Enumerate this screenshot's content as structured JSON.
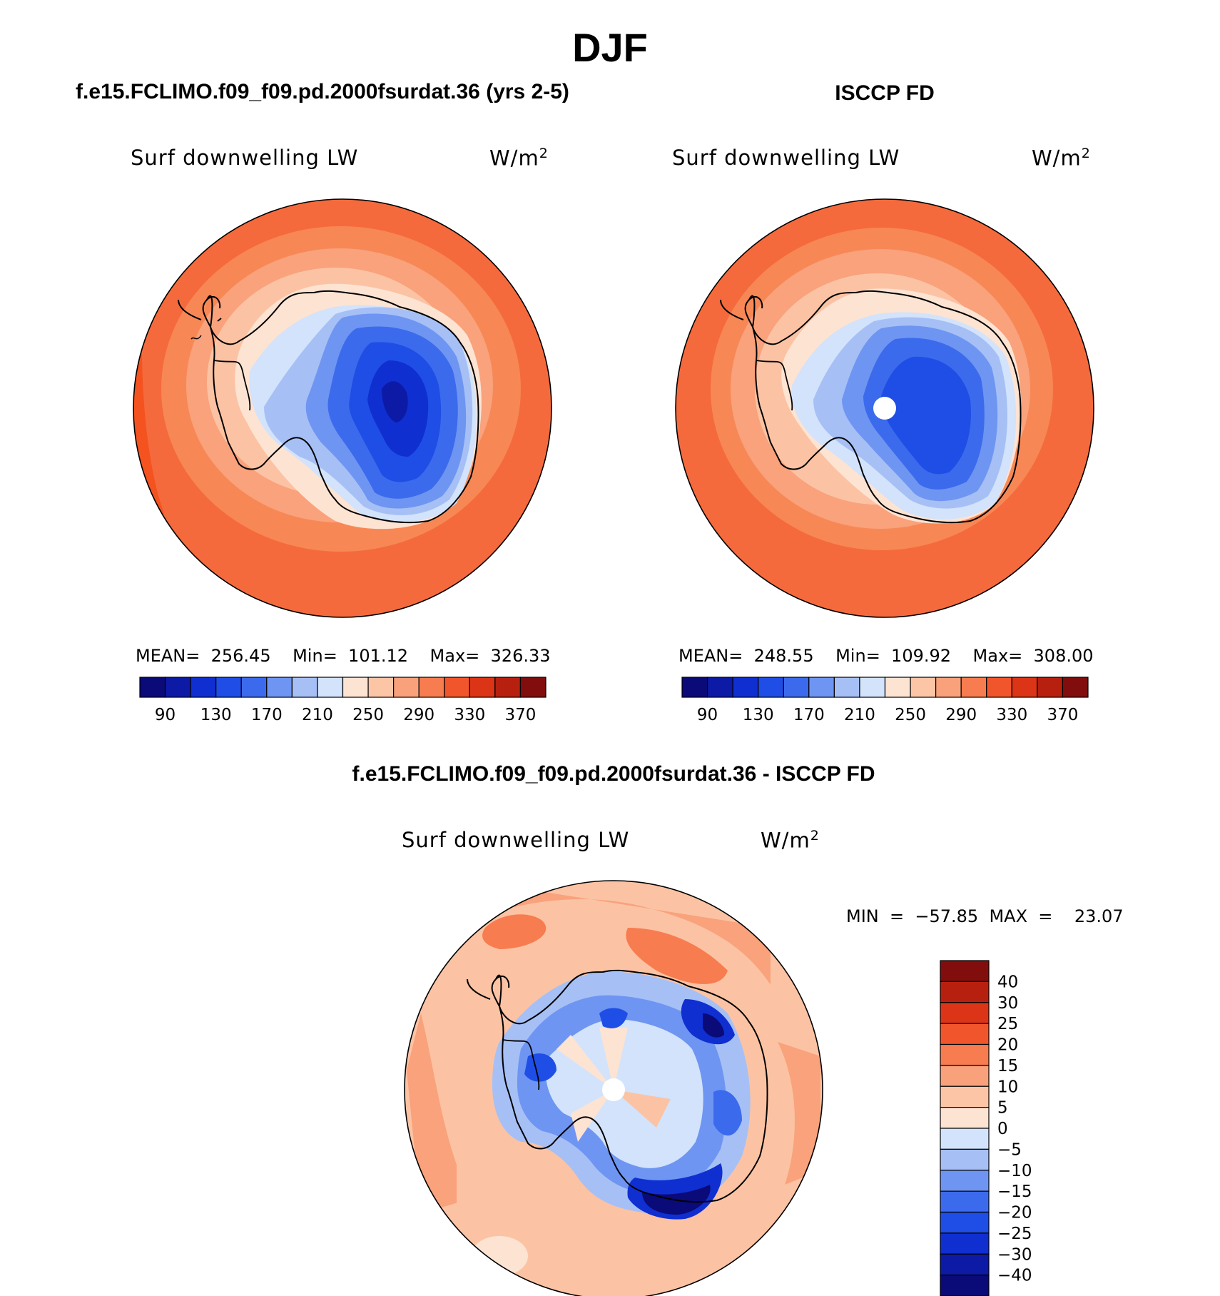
{
  "figure": {
    "main_title": "DJF",
    "panel_left_title": "f.e15.FCLIMO.f09_f09.pd.2000fsurdat.36 (yrs 2-5)",
    "panel_right_title": "ISCCP FD",
    "panel_diff_title": "f.e15.FCLIMO.f09_f09.pd.2000fsurdat.36 - ISCCP FD"
  },
  "chart_data": [
    {
      "type": "heatmap",
      "projection": "south polar stereographic",
      "title": "f.e15.FCLIMO.f09_f09.pd.2000fsurdat.36 (yrs 2-5)",
      "variable": "Surf downwelling LW",
      "units_base": "W/m",
      "units_exp": "2",
      "stats_text": "MEAN=  256.45    Min=  101.12    Max=  326.33",
      "stats": {
        "mean": 256.45,
        "min": 101.12,
        "max": 326.33
      },
      "colorbar": {
        "orientation": "horizontal",
        "levels": [
          90,
          110,
          130,
          150,
          170,
          190,
          210,
          230,
          250,
          270,
          290,
          310,
          330,
          350,
          370
        ],
        "tick_labels": [
          "90",
          "130",
          "170",
          "210",
          "250",
          "290",
          "330",
          "370"
        ],
        "colors": [
          "#0a0a78",
          "#0c1aa6",
          "#0f2fd0",
          "#1f4ee6",
          "#3b6bec",
          "#6f95f2",
          "#a6c0f6",
          "#d2e3fb",
          "#fde3d2",
          "#fbc5a6",
          "#f9a17b",
          "#f77c4f",
          "#f1552b",
          "#db3416",
          "#b7200f",
          "#820d0d"
        ]
      }
    },
    {
      "type": "heatmap",
      "projection": "south polar stereographic",
      "title": "ISCCP FD",
      "variable": "Surf downwelling LW",
      "units_base": "W/m",
      "units_exp": "2",
      "stats_text": "MEAN=  248.55    Min=  109.92    Max=  308.00",
      "stats": {
        "mean": 248.55,
        "min": 109.92,
        "max": 308.0
      },
      "colorbar": {
        "orientation": "horizontal",
        "levels": [
          90,
          110,
          130,
          150,
          170,
          190,
          210,
          230,
          250,
          270,
          290,
          310,
          330,
          350,
          370
        ],
        "tick_labels": [
          "90",
          "130",
          "170",
          "210",
          "250",
          "290",
          "330",
          "370"
        ],
        "colors": [
          "#0a0a78",
          "#0c1aa6",
          "#0f2fd0",
          "#1f4ee6",
          "#3b6bec",
          "#6f95f2",
          "#a6c0f6",
          "#d2e3fb",
          "#fde3d2",
          "#fbc5a6",
          "#f9a17b",
          "#f77c4f",
          "#f1552b",
          "#db3416",
          "#b7200f",
          "#820d0d"
        ]
      }
    },
    {
      "type": "heatmap",
      "projection": "south polar stereographic",
      "title": "f.e15.FCLIMO.f09_f09.pd.2000fsurdat.36 - ISCCP FD",
      "variable": "Surf downwelling LW",
      "units_base": "W/m",
      "units_exp": "2",
      "stats_text": "MIN  =  −57.85  MAX  =    23.07",
      "stats": {
        "min": -57.85,
        "max": 23.07
      },
      "colorbar": {
        "orientation": "vertical",
        "levels": [
          40,
          30,
          25,
          20,
          15,
          10,
          5,
          0,
          -5,
          -10,
          -15,
          -20,
          -25,
          -30,
          -40
        ],
        "tick_labels": [
          "40",
          "30",
          "25",
          "20",
          "15",
          "10",
          "5",
          "0",
          "−5",
          "−10",
          "−15",
          "−20",
          "−25",
          "−30",
          "−40"
        ],
        "colors_top_to_bottom": [
          "#820d0d",
          "#b7200f",
          "#db3416",
          "#f1552b",
          "#f77c4f",
          "#f9a17b",
          "#fbc5a6",
          "#fde3d2",
          "#d2e3fb",
          "#a6c0f6",
          "#6f95f2",
          "#3b6bec",
          "#1f4ee6",
          "#0f2fd0",
          "#0c1aa6",
          "#0a0a78"
        ]
      }
    }
  ]
}
